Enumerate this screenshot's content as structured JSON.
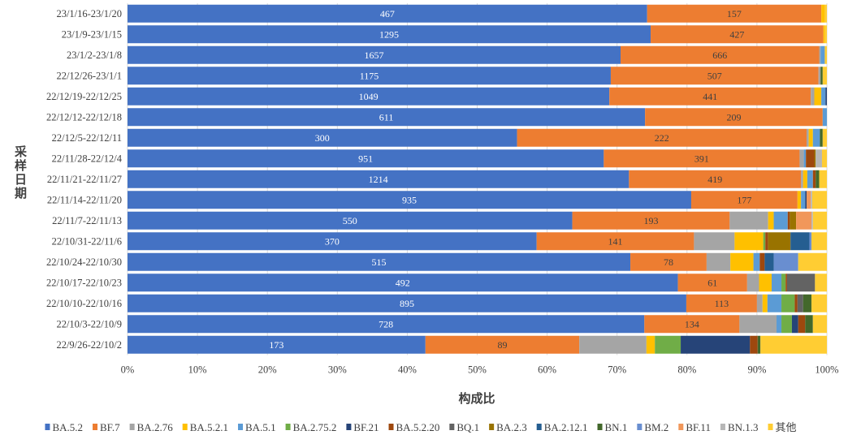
{
  "chart_data": {
    "type": "bar",
    "orientation": "horizontal",
    "stacked": "percent",
    "xlabel": "构成比",
    "ylabel": "采样日期",
    "xlim": [
      0,
      100
    ],
    "xticks": [
      "0%",
      "10%",
      "20%",
      "30%",
      "40%",
      "50%",
      "60%",
      "70%",
      "80%",
      "90%",
      "100%"
    ],
    "grid": true,
    "legend": "bottom",
    "series": [
      {
        "name": "BA.5.2",
        "color": "#4472C4"
      },
      {
        "name": "BF.7",
        "color": "#ED7D31"
      },
      {
        "name": "BA.2.76",
        "color": "#A5A5A5"
      },
      {
        "name": "BA.5.2.1",
        "color": "#FFC000"
      },
      {
        "name": "BA.5.1",
        "color": "#5B9BD5"
      },
      {
        "name": "BA.2.75.2",
        "color": "#70AD47"
      },
      {
        "name": "BF.21",
        "color": "#264478"
      },
      {
        "name": "BA.5.2.20",
        "color": "#9E480E"
      },
      {
        "name": "BQ.1",
        "color": "#636363"
      },
      {
        "name": "BA.2.3",
        "color": "#997300"
      },
      {
        "name": "BA.2.12.1",
        "color": "#255E91"
      },
      {
        "name": "BN.1",
        "color": "#43682B"
      },
      {
        "name": "BM.2",
        "color": "#698ED0"
      },
      {
        "name": "BF.11",
        "color": "#F1975A"
      },
      {
        "name": "BN.1.3",
        "color": "#B7B7B7"
      },
      {
        "name": "其他",
        "color": "#FFCD33"
      }
    ],
    "rows": [
      {
        "category": "23/1/16-23/1/20",
        "labels": [
          467,
          157
        ],
        "values": [
          74.3,
          24.9,
          0,
          0.5,
          0,
          0,
          0,
          0,
          0,
          0,
          0,
          0,
          0,
          0,
          0,
          0.3
        ]
      },
      {
        "category": "23/1/9-23/1/15",
        "labels": [
          1295,
          427
        ],
        "values": [
          74.8,
          24.7,
          0,
          0.2,
          0,
          0,
          0,
          0,
          0,
          0,
          0,
          0,
          0,
          0,
          0,
          0.3
        ]
      },
      {
        "category": "23/1/2-23/1/8",
        "labels": [
          1657,
          666
        ],
        "values": [
          70.5,
          28.4,
          0.2,
          0,
          0.6,
          0,
          0,
          0,
          0,
          0,
          0,
          0,
          0,
          0,
          0,
          0.3
        ]
      },
      {
        "category": "22/12/26-23/1/1",
        "labels": [
          1175,
          507
        ],
        "values": [
          69.1,
          29.7,
          0.3,
          0,
          0,
          0,
          0,
          0,
          0,
          0,
          0,
          0.3,
          0,
          0,
          0,
          0.6
        ]
      },
      {
        "category": "22/12/19-22/12/25",
        "labels": [
          1049,
          441
        ],
        "values": [
          68.9,
          28.8,
          0.5,
          1.0,
          0.6,
          0,
          0.2,
          0,
          0,
          0,
          0,
          0,
          0,
          0,
          0,
          0
        ]
      },
      {
        "category": "22/12/12-22/12/18",
        "labels": [
          611,
          209
        ],
        "values": [
          74.0,
          25.4,
          0,
          0,
          0.6,
          0,
          0,
          0,
          0,
          0,
          0,
          0,
          0,
          0,
          0,
          0
        ]
      },
      {
        "category": "22/12/5-22/12/11",
        "labels": [
          300,
          222
        ],
        "values": [
          55.7,
          41.4,
          0.3,
          0.6,
          1.0,
          0,
          0,
          0,
          0,
          0,
          0,
          0.4,
          0,
          0,
          0,
          0.6
        ]
      },
      {
        "category": "22/11/28-22/12/4",
        "labels": [
          951,
          391
        ],
        "values": [
          68.1,
          28.0,
          0.6,
          0,
          0.3,
          0,
          0,
          1.2,
          0,
          0.2,
          0,
          0,
          0,
          0,
          0.9,
          0.7
        ]
      },
      {
        "category": "22/11/21-22/11/27",
        "labels": [
          1214,
          419
        ],
        "values": [
          71.7,
          24.6,
          0.3,
          0.6,
          0.8,
          0,
          0,
          0.4,
          0,
          0,
          0,
          0.5,
          0,
          0,
          0,
          1.1
        ]
      },
      {
        "category": "22/11/14-22/11/20",
        "labels": [
          935,
          177
        ],
        "values": [
          80.6,
          15.2,
          0,
          0.5,
          0.6,
          0,
          0.2,
          0,
          0,
          0,
          0,
          0,
          0,
          0.6,
          0.2,
          2.1
        ]
      },
      {
        "category": "22/11/7-22/11/13",
        "labels": [
          550,
          193
        ],
        "values": [
          63.6,
          22.5,
          5.5,
          0.8,
          2.0,
          0,
          0,
          0.3,
          0,
          0.9,
          0,
          0,
          0,
          2.2,
          0.2,
          2.0
        ]
      },
      {
        "category": "22/10/31-22/11/6",
        "labels": [
          370,
          141
        ],
        "values": [
          58.5,
          22.5,
          5.8,
          4.1,
          0,
          0.3,
          0,
          0.4,
          0,
          3.2,
          2.7,
          0,
          0.3,
          0,
          0,
          2.2
        ]
      },
      {
        "category": "22/10/24-22/10/30",
        "labels": [
          515,
          78
        ],
        "values": [
          71.9,
          10.9,
          3.4,
          3.3,
          0.9,
          0,
          0,
          0.7,
          0,
          0,
          1.3,
          0,
          3.5,
          0,
          0,
          4.1
        ]
      },
      {
        "category": "22/10/17-22/10/23",
        "labels": [
          492,
          61
        ],
        "values": [
          78.7,
          9.9,
          1.7,
          1.8,
          1.4,
          0.6,
          0,
          0.2,
          4.0,
          0,
          0,
          0,
          0,
          0,
          0,
          1.7
        ]
      },
      {
        "category": "22/10/10-22/10/16",
        "labels": [
          895,
          113
        ],
        "values": [
          79.9,
          10.1,
          0.8,
          0.7,
          2.0,
          1.9,
          0,
          0.4,
          0.8,
          0,
          0,
          1.2,
          0,
          0,
          0,
          2.2
        ]
      },
      {
        "category": "22/10/3-22/10/9",
        "labels": [
          728,
          134
        ],
        "values": [
          73.9,
          13.6,
          5.3,
          0,
          0.7,
          1.5,
          0.9,
          1.0,
          0,
          0,
          0,
          1.1,
          0,
          0,
          0,
          2.0
        ]
      },
      {
        "category": "22/9/26-22/10/2",
        "labels": [
          173,
          89
        ],
        "values": [
          42.6,
          22.0,
          9.6,
          1.2,
          0,
          3.7,
          9.9,
          1.1,
          0,
          0,
          0,
          0.4,
          0,
          0,
          0,
          9.5
        ]
      }
    ]
  }
}
